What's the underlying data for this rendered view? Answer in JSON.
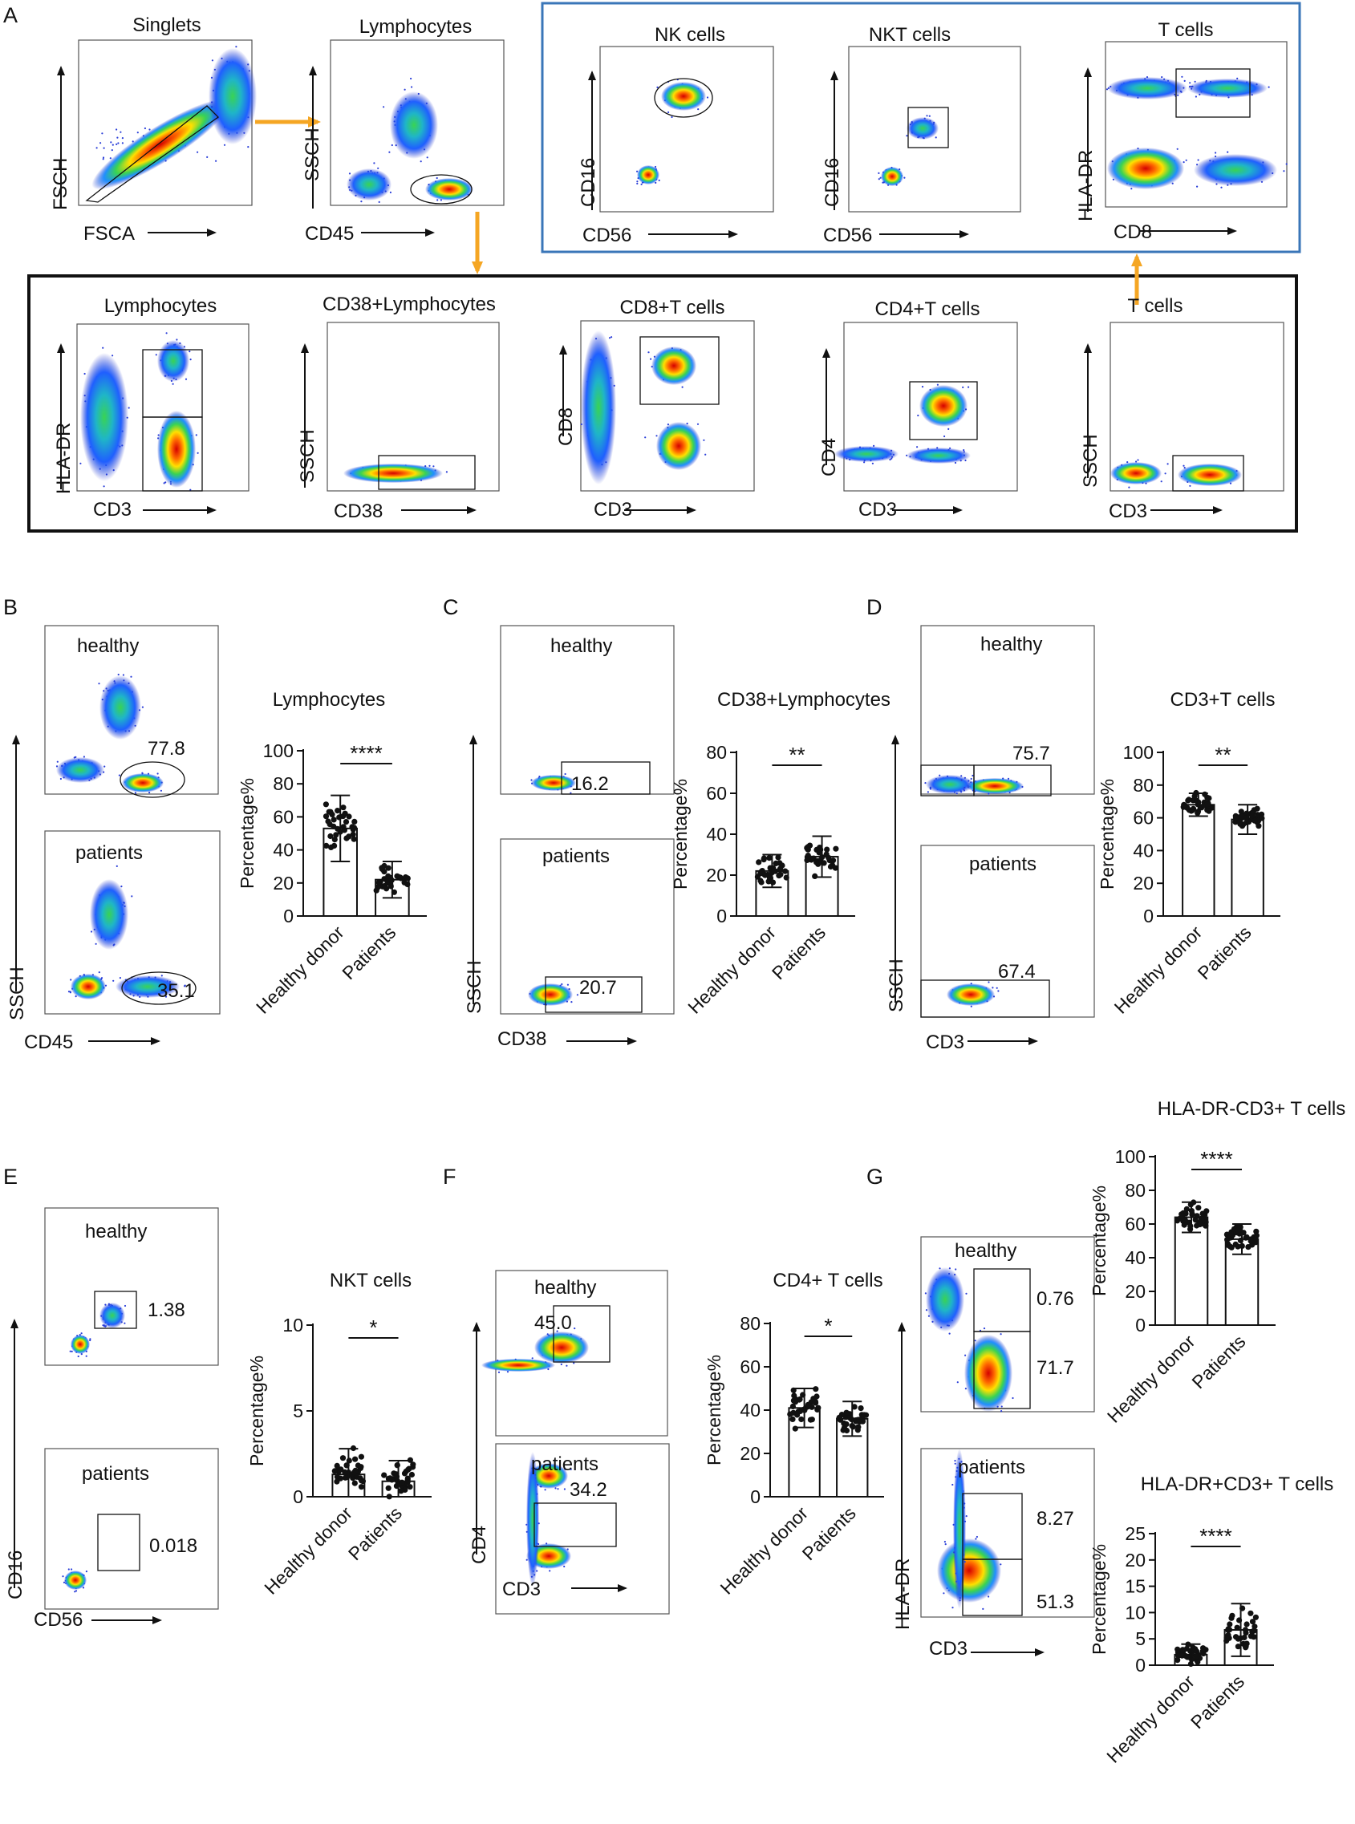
{
  "panel_letters": {
    "A": "A",
    "B": "B",
    "C": "C",
    "D": "D",
    "E": "E",
    "F": "F",
    "G": "G"
  },
  "gating": {
    "singlets": {
      "title": "Singlets",
      "x": "FSCA",
      "y": "FSCH"
    },
    "lymph_top": {
      "title": "Lymphocytes",
      "x": "CD45",
      "y": "SSCH"
    },
    "nk": {
      "title": "NK cells",
      "x": "CD56",
      "y": "CD16"
    },
    "nkt": {
      "title": "NKT cells",
      "x": "CD56",
      "y": "CD16"
    },
    "t_top": {
      "title": "T cells",
      "x": "CD8",
      "y": "HLA-DR"
    },
    "lymph_bottom": {
      "title": "Lymphocytes",
      "x": "CD3",
      "y": "HLA-DR"
    },
    "cd38": {
      "title": "CD38+Lymphocytes",
      "x": "CD38",
      "y": "SSCH"
    },
    "cd8t": {
      "title": "CD8+T cells",
      "x": "CD3",
      "y": "CD8"
    },
    "cd4t": {
      "title": "CD4+T cells",
      "x": "CD3",
      "y": "CD4"
    },
    "t_bottom": {
      "title": "T cells",
      "x": "CD3",
      "y": "SSCH"
    }
  },
  "flow_panels": {
    "B": {
      "y": "SSCH",
      "x": "CD45",
      "healthy": "healthy",
      "patients": "patients",
      "h_val": "77.8",
      "p_val": "35.1"
    },
    "C": {
      "y": "SSCH",
      "x": "CD38",
      "healthy": "healthy",
      "patients": "patients",
      "h_val": "16.2",
      "p_val": "20.7"
    },
    "D": {
      "y": "SSCH",
      "x": "CD3",
      "healthy": "healthy",
      "patients": "patients",
      "h_val": "75.7",
      "p_val": "67.4"
    },
    "E": {
      "y": "CD16",
      "x": "CD56",
      "healthy": "healthy",
      "patients": "patients",
      "h_val": "1.38",
      "p_val": "0.018"
    },
    "F": {
      "y": "CD4",
      "x": "CD3",
      "healthy": "healthy",
      "patients": "patients",
      "h_val": "45.0",
      "p_val": "34.2"
    },
    "G": {
      "y": "HLA-DR",
      "x": "CD3",
      "healthy": "healthy",
      "patients": "patients",
      "h_val_top": "0.76",
      "h_val_bot": "71.7",
      "p_val_top": "8.27",
      "p_val_bot": "51.3"
    }
  },
  "chart_data": [
    {
      "id": "B",
      "type": "bar",
      "title": "Lymphocytes",
      "ylabel": "Percentage%",
      "categories": [
        "Healthy donor",
        "Patients"
      ],
      "values": [
        53,
        22
      ],
      "sd": [
        20,
        11
      ],
      "ylim": [
        0,
        100
      ],
      "yticks": [
        "0",
        "20",
        "40",
        "60",
        "80",
        "100"
      ],
      "significance": "****"
    },
    {
      "id": "C",
      "type": "bar",
      "title": "CD38+Lymphocytes",
      "ylabel": "Percentage%",
      "categories": [
        "Healthy donor",
        "Patients"
      ],
      "values": [
        22,
        29
      ],
      "sd": [
        8,
        10
      ],
      "ylim": [
        0,
        80
      ],
      "yticks": [
        "0",
        "20",
        "40",
        "60",
        "80"
      ],
      "significance": "**"
    },
    {
      "id": "D",
      "type": "bar",
      "title": "CD3+T cells",
      "ylabel": "Percentage%",
      "categories": [
        "Healthy donor",
        "Patients"
      ],
      "values": [
        68,
        59
      ],
      "sd": [
        7,
        9
      ],
      "ylim": [
        0,
        100
      ],
      "yticks": [
        "0",
        "20",
        "40",
        "60",
        "80",
        "100"
      ],
      "significance": "**"
    },
    {
      "id": "E",
      "type": "bar",
      "title": "NKT cells",
      "ylabel": "Percentage%",
      "categories": [
        "Healthy donor",
        "Patients"
      ],
      "values": [
        1.3,
        0.9
      ],
      "sd": [
        1.5,
        1.2
      ],
      "ylim": [
        0,
        10
      ],
      "yticks": [
        "0",
        "5",
        "10"
      ],
      "significance": "*"
    },
    {
      "id": "F",
      "type": "bar",
      "title": "CD4+ T cells",
      "ylabel": "Percentage%",
      "categories": [
        "Healthy donor",
        "Patients"
      ],
      "values": [
        41,
        36
      ],
      "sd": [
        9,
        8
      ],
      "ylim": [
        0,
        80
      ],
      "yticks": [
        "0",
        "20",
        "40",
        "60",
        "80"
      ],
      "significance": "*"
    },
    {
      "id": "G1",
      "type": "bar",
      "title": "HLA-DR-CD3+ T cells",
      "ylabel": "Percentage%",
      "categories": [
        "Healthy donor",
        "Patients"
      ],
      "values": [
        64,
        51
      ],
      "sd": [
        9,
        9
      ],
      "ylim": [
        0,
        100
      ],
      "yticks": [
        "0",
        "20",
        "40",
        "60",
        "80",
        "100"
      ],
      "significance": "****"
    },
    {
      "id": "G2",
      "type": "bar",
      "title": "HLA-DR+CD3+ T cells",
      "ylabel": "Percentage%",
      "categories": [
        "Healthy donor",
        "Patients"
      ],
      "values": [
        2.0,
        6.7
      ],
      "sd": [
        2.0,
        5.0
      ],
      "ylim": [
        0,
        25
      ],
      "yticks": [
        "0",
        "5",
        "10",
        "15",
        "20",
        "25"
      ],
      "significance": "****"
    }
  ],
  "colors": {
    "bar_edge": "#111111",
    "dot": "#111111",
    "arrow": "#F5A623",
    "blue_box": "#3A76B8",
    "black_box": "#111111"
  }
}
